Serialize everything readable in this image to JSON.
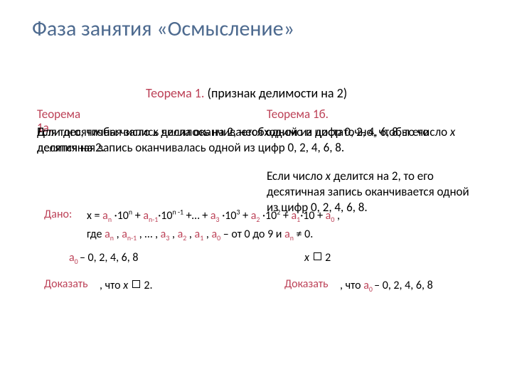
{
  "title": "Фаза занятия «Осмысление»",
  "theorem": {
    "red": "Теорема 1. ",
    "black": "(признак делимости на 2)"
  },
  "colLeft": "Теорема 1а.",
  "colRight": "Теорема 1б.",
  "overlapA_part1": "   Для того, чтобы число ",
  "overlapA_x": "x",
  "overlapA_part2": " делилось на 2, необходимо и достаточно, чтобы его десятичная запись оканчивалась одной из цифр 0, 2, 4, 6, 8.",
  "overlapB_part1": "   Если десятичная запись числа оканчивается одной из цифр 0, 2, 4, 6, 8, то число ",
  "overlapB_x": "x",
  "overlapB_part2": " делится на 2.",
  "rightTail_part1": "Если число ",
  "rightTail_x": "x",
  "rightTail_part2": " делится на 2, то его десятичная запись оканчивается одной из цифр 0, 2, 4, 6, 8.",
  "dano": "Дано:",
  "line1": {
    "p0": "x = ",
    "an": "a",
    "ansub": "n",
    "p1": " ·10",
    "e1": "n",
    "p1b": " + ",
    "an1": "a",
    "an1sub": "n-1",
    "p2": "·10",
    "e2": "n -1",
    "p2b": " +… + ",
    "a3": "a",
    "a3sub": "3",
    "p3": " ·10",
    "e3": "3",
    "p3b": " + ",
    "a2": "a",
    "a2sub": "2",
    "p4": " ·10",
    "e4": "2",
    "p4b": " + ",
    "a1": "a",
    "a1sub": "1",
    "p5": "·10 + ",
    "a0": "a",
    "a0sub": "0",
    "p6": " ,"
  },
  "line2": {
    "p0": "где  ",
    "an": "a",
    "ansub": "n",
    "c1": " , ",
    "an1": "a",
    "an1sub": "n-1",
    "c2": " , … , ",
    "a3": "a",
    "a3sub": "3",
    "c3": " , ",
    "a2": "a",
    "a2sub": "2",
    "c4": " , ",
    "a1": "a",
    "a1sub": "1",
    "c5": " , ",
    "a0": "a",
    "a0sub": "0",
    "mid": " – от 0 до 9 и ",
    "anr": "a",
    "anrsub": "n",
    "tail": " ≠ 0."
  },
  "a0left": {
    "a": "a",
    "sub": "0 ",
    "tail": "– 0, 2, 4, 6, 8"
  },
  "xdiv2": {
    "x": "x",
    "sp": " ",
    "two": " 2"
  },
  "prove": "Доказать",
  "proveLeft": {
    "p0": ", что  ",
    "x": "x",
    "two": " 2."
  },
  "proveRight": {
    "p0": ", что  ",
    "a": "a",
    "sub": "0 ",
    "tail": "– 0, 2, 4, 6, 8"
  },
  "colors": {
    "accent": "#bc4056",
    "title": "#4d6a8f",
    "text": "#000000",
    "bg": "#ffffff"
  }
}
